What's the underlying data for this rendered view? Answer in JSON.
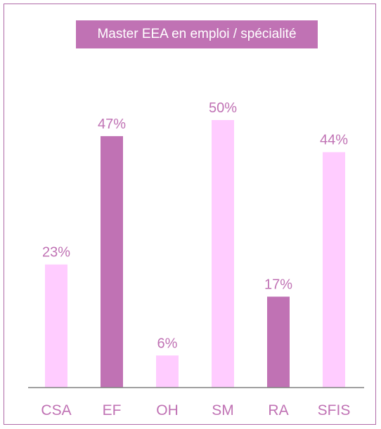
{
  "chart_data": {
    "type": "bar",
    "title": "Master EEA en emploi / spécialité",
    "categories": [
      "CSA",
      "EF",
      "OH",
      "SM",
      "RA",
      "SFIS"
    ],
    "values": [
      23,
      47,
      6,
      50,
      17,
      44
    ],
    "value_labels": [
      "23%",
      "47%",
      "6%",
      "50%",
      "17%",
      "44%"
    ],
    "unit": "%",
    "ylim": [
      0,
      50
    ],
    "grid": false,
    "legend": "none",
    "colors": [
      "#ffccff",
      "#c072b4",
      "#ffccff",
      "#ffccff",
      "#c072b4",
      "#ffccff"
    ],
    "text_color": "#c072b4",
    "border_color": "#b06aa8",
    "axis_color": "#808080"
  }
}
